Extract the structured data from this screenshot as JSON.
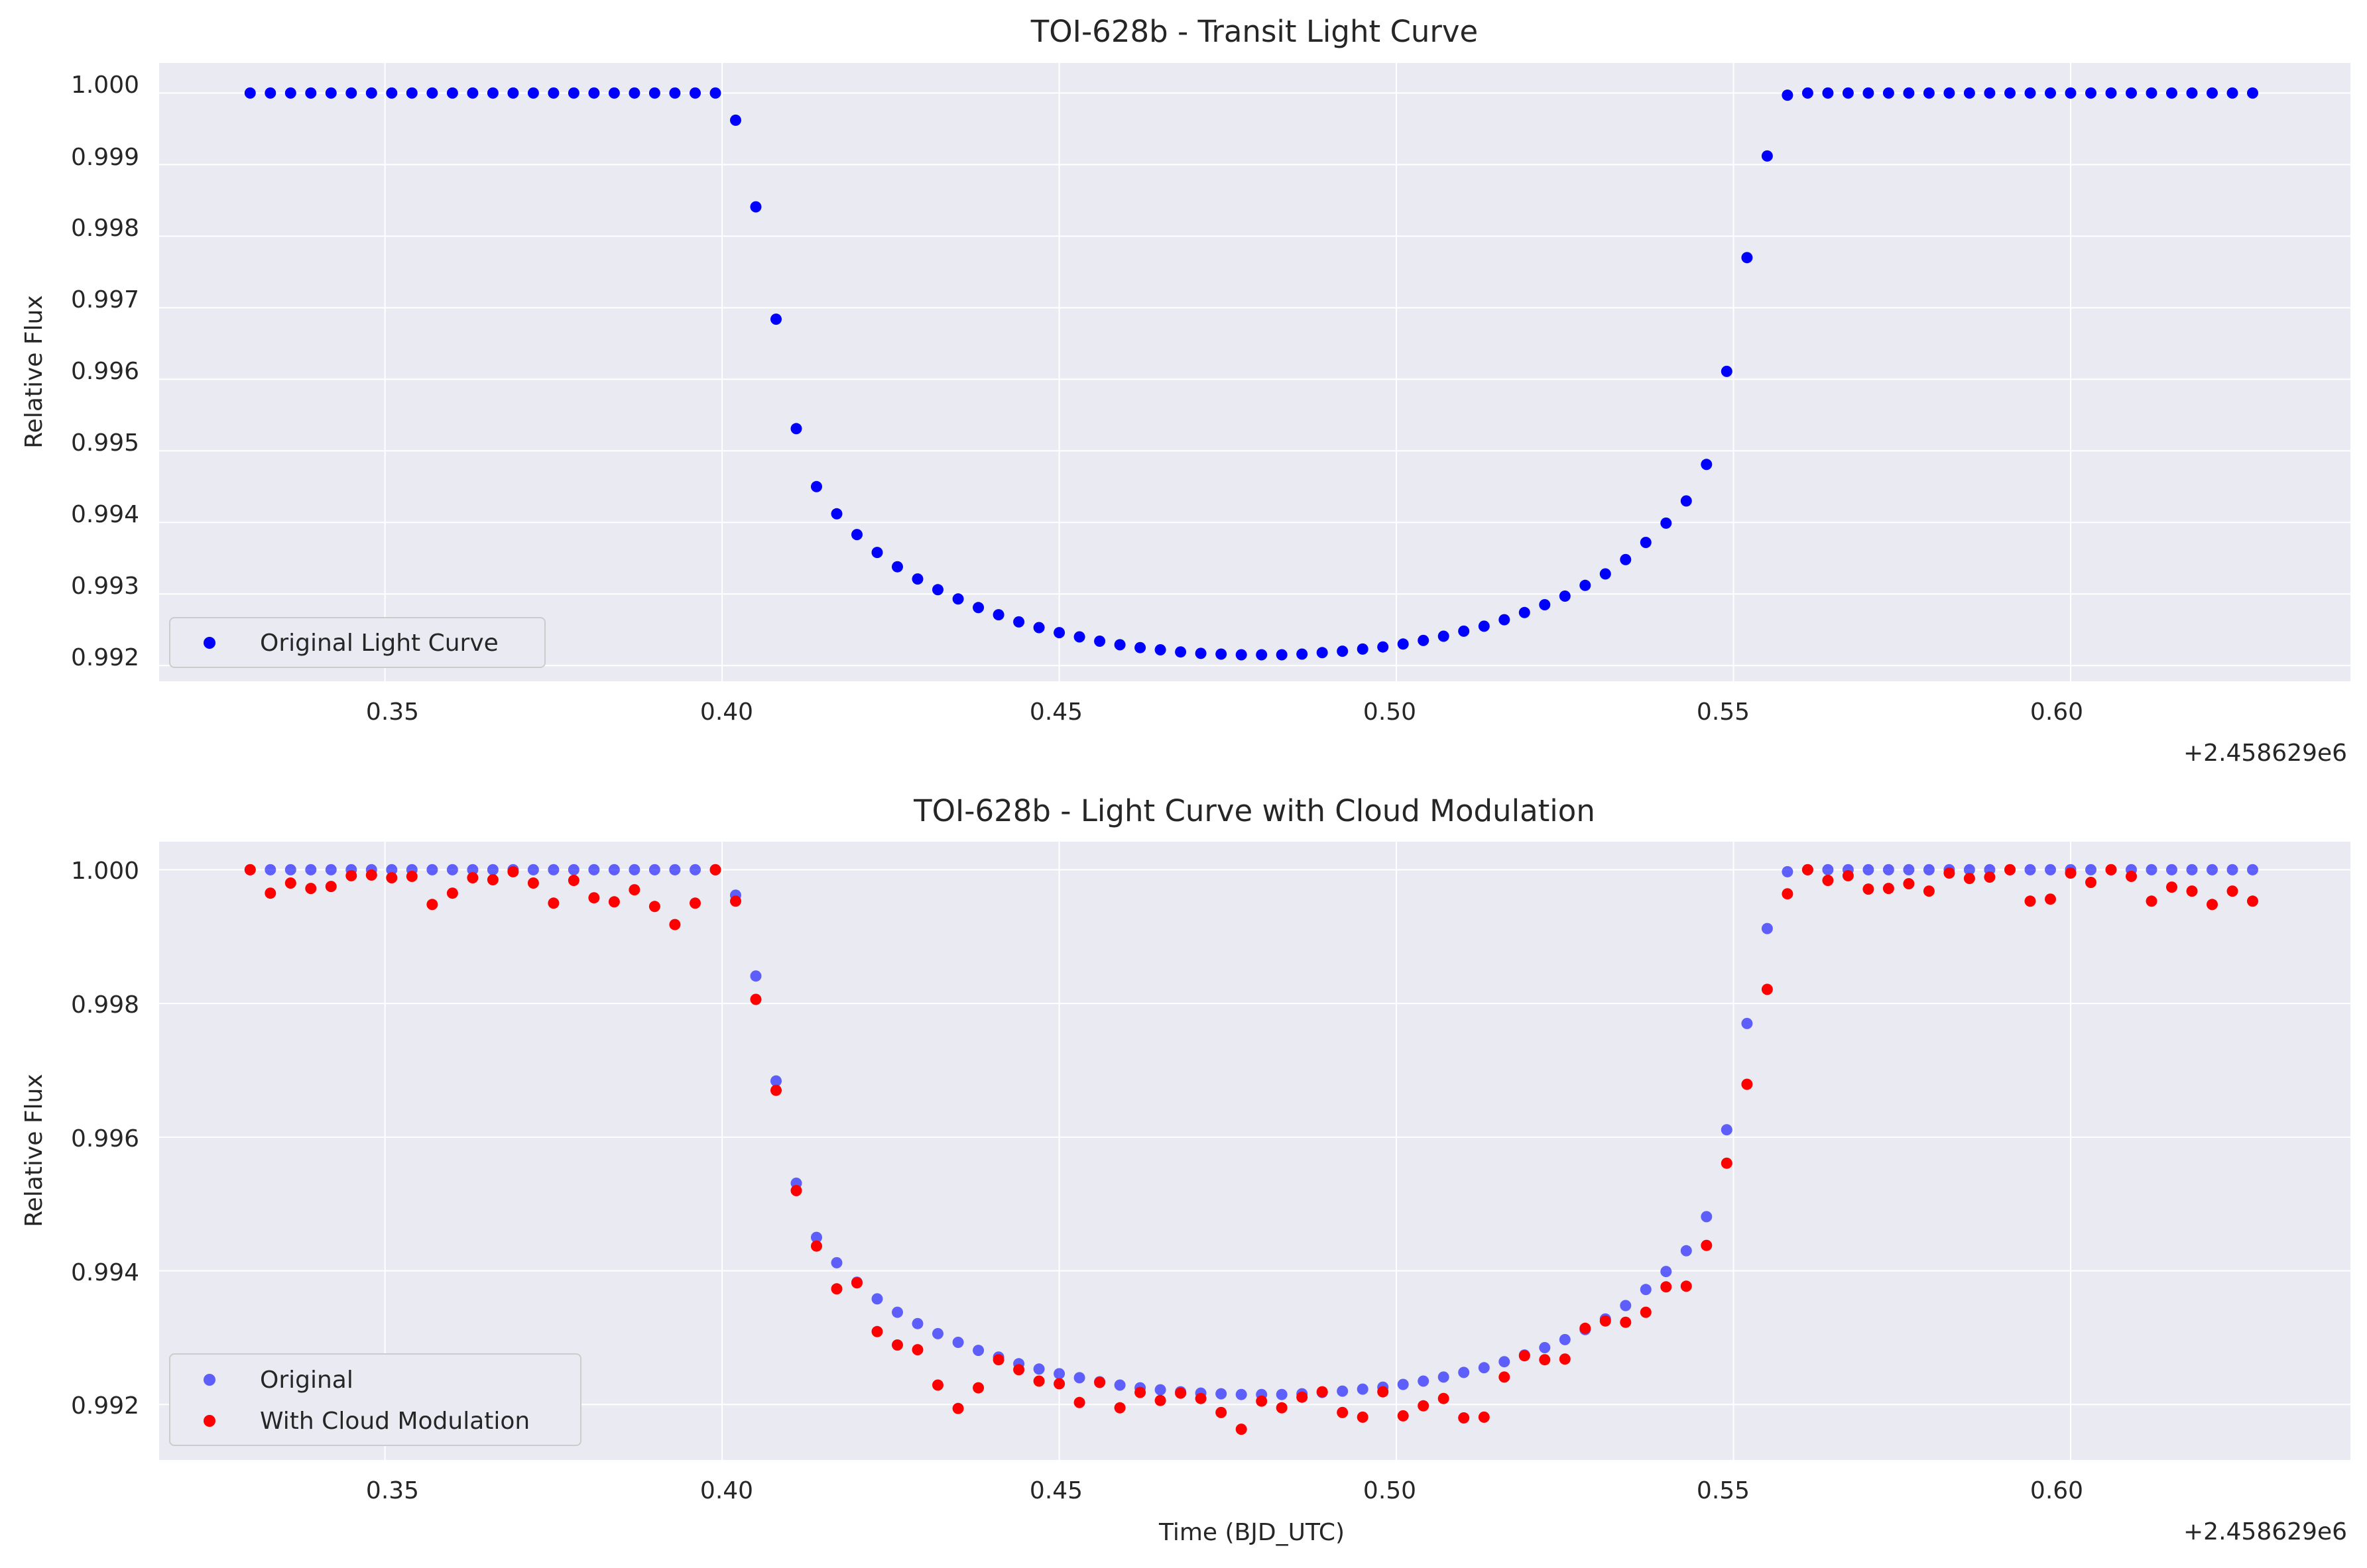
{
  "figure": {
    "panels": [
      {
        "title": "TOI-628b - Transit Light Curve",
        "xlabel": "",
        "ylabel": "Relative Flux",
        "offset_text": "+2.458629e6",
        "xticks": [
          "0.35",
          "0.40",
          "0.45",
          "0.50",
          "0.55",
          "0.60"
        ],
        "yticks": [
          "0.992",
          "0.993",
          "0.994",
          "0.995",
          "0.996",
          "0.997",
          "0.998",
          "0.999",
          "1.000"
        ],
        "legend": [
          "Original Light Curve"
        ]
      },
      {
        "title": "TOI-628b - Light Curve with Cloud Modulation",
        "xlabel": "Time (BJD_UTC)",
        "ylabel": "Relative Flux",
        "offset_text": "+2.458629e6",
        "xticks": [
          "0.35",
          "0.40",
          "0.45",
          "0.50",
          "0.55",
          "0.60"
        ],
        "yticks": [
          "0.992",
          "0.994",
          "0.996",
          "0.998",
          "1.000"
        ],
        "legend": [
          "Original",
          "With Cloud Modulation"
        ]
      }
    ]
  },
  "chart_data": [
    {
      "type": "scatter",
      "title": "TOI-628b - Transit Light Curve",
      "xlabel": "",
      "ylabel": "Relative Flux",
      "x_offset": 2458629,
      "x_offset_label": "+2.458629e6",
      "xlim": [
        0.3165,
        0.6415
      ],
      "ylim": [
        0.99178,
        1.00042
      ],
      "grid": true,
      "legend_position": "lower-left",
      "series": [
        {
          "name": "Original Light Curve",
          "color": "#0000ff",
          "x": [
            0.33,
            0.333,
            0.336,
            0.339,
            0.342,
            0.345,
            0.348,
            0.351,
            0.354,
            0.357,
            0.36,
            0.363,
            0.366,
            0.369,
            0.372,
            0.375,
            0.378,
            0.381,
            0.384,
            0.387,
            0.39,
            0.393,
            0.396,
            0.399,
            0.402,
            0.405,
            0.408,
            0.411,
            0.414,
            0.417,
            0.42,
            0.423,
            0.426,
            0.429,
            0.432,
            0.435,
            0.438,
            0.441,
            0.444,
            0.447,
            0.45,
            0.453,
            0.456,
            0.459,
            0.462,
            0.465,
            0.468,
            0.471,
            0.474,
            0.477,
            0.48,
            0.483,
            0.486,
            0.489,
            0.492,
            0.495,
            0.498,
            0.501,
            0.504,
            0.507,
            0.51,
            0.513,
            0.516,
            0.519,
            0.522,
            0.525,
            0.528,
            0.531,
            0.534,
            0.537,
            0.54,
            0.543,
            0.546,
            0.549,
            0.552,
            0.555,
            0.558,
            0.561,
            0.564,
            0.567,
            0.57,
            0.573,
            0.576,
            0.579,
            0.582,
            0.585,
            0.588,
            0.591,
            0.594,
            0.597,
            0.6,
            0.603,
            0.606,
            0.609,
            0.612,
            0.615,
            0.618,
            0.621,
            0.624,
            0.627
          ],
          "y": [
            1.0,
            1.0,
            1.0,
            1.0,
            1.0,
            1.0,
            1.0,
            1.0,
            1.0,
            1.0,
            1.0,
            1.0,
            1.0,
            1.0,
            1.0,
            1.0,
            1.0,
            1.0,
            1.0,
            1.0,
            1.0,
            1.0,
            1.0,
            1.0,
            0.99962,
            0.99841,
            0.99684,
            0.99531,
            0.9945,
            0.99412,
            0.99383,
            0.99358,
            0.99338,
            0.99321,
            0.99306,
            0.99293,
            0.99281,
            0.99271,
            0.99261,
            0.99253,
            0.99246,
            0.9924,
            0.99234,
            0.99229,
            0.99225,
            0.99222,
            0.99219,
            0.99217,
            0.99216,
            0.99215,
            0.99215,
            0.99215,
            0.99216,
            0.99218,
            0.9922,
            0.99223,
            0.99226,
            0.9923,
            0.99235,
            0.99241,
            0.99248,
            0.99255,
            0.99264,
            0.99274,
            0.99285,
            0.99297,
            0.99312,
            0.99328,
            0.99348,
            0.99372,
            0.99399,
            0.9943,
            0.99481,
            0.99611,
            0.9977,
            0.99912,
            0.99997,
            1.0,
            1.0,
            1.0,
            1.0,
            1.0,
            1.0,
            1.0,
            1.0,
            1.0,
            1.0,
            1.0,
            1.0,
            1.0,
            1.0,
            1.0,
            1.0,
            1.0,
            1.0,
            1.0,
            1.0,
            1.0,
            1.0,
            1.0
          ]
        }
      ]
    },
    {
      "type": "scatter",
      "title": "TOI-628b - Light Curve with Cloud Modulation",
      "xlabel": "Time (BJD_UTC)",
      "ylabel": "Relative Flux",
      "x_offset": 2458629,
      "x_offset_label": "+2.458629e6",
      "xlim": [
        0.3165,
        0.6415
      ],
      "ylim": [
        0.99117,
        1.00042
      ],
      "grid": true,
      "legend_position": "lower-left",
      "series": [
        {
          "name": "Original",
          "color": "#0000ff",
          "x": [
            0.33,
            0.333,
            0.336,
            0.339,
            0.342,
            0.345,
            0.348,
            0.351,
            0.354,
            0.357,
            0.36,
            0.363,
            0.366,
            0.369,
            0.372,
            0.375,
            0.378,
            0.381,
            0.384,
            0.387,
            0.39,
            0.393,
            0.396,
            0.399,
            0.402,
            0.405,
            0.408,
            0.411,
            0.414,
            0.417,
            0.42,
            0.423,
            0.426,
            0.429,
            0.432,
            0.435,
            0.438,
            0.441,
            0.444,
            0.447,
            0.45,
            0.453,
            0.456,
            0.459,
            0.462,
            0.465,
            0.468,
            0.471,
            0.474,
            0.477,
            0.48,
            0.483,
            0.486,
            0.489,
            0.492,
            0.495,
            0.498,
            0.501,
            0.504,
            0.507,
            0.51,
            0.513,
            0.516,
            0.519,
            0.522,
            0.525,
            0.528,
            0.531,
            0.534,
            0.537,
            0.54,
            0.543,
            0.546,
            0.549,
            0.552,
            0.555,
            0.558,
            0.561,
            0.564,
            0.567,
            0.57,
            0.573,
            0.576,
            0.579,
            0.582,
            0.585,
            0.588,
            0.591,
            0.594,
            0.597,
            0.6,
            0.603,
            0.606,
            0.609,
            0.612,
            0.615,
            0.618,
            0.621,
            0.624,
            0.627
          ],
          "y": [
            1.0,
            1.0,
            1.0,
            1.0,
            1.0,
            1.0,
            1.0,
            1.0,
            1.0,
            1.0,
            1.0,
            1.0,
            1.0,
            1.0,
            1.0,
            1.0,
            1.0,
            1.0,
            1.0,
            1.0,
            1.0,
            1.0,
            1.0,
            1.0,
            0.99962,
            0.99841,
            0.99684,
            0.99531,
            0.9945,
            0.99412,
            0.99383,
            0.99358,
            0.99338,
            0.99321,
            0.99306,
            0.99293,
            0.99281,
            0.99271,
            0.99261,
            0.99253,
            0.99246,
            0.9924,
            0.99234,
            0.99229,
            0.99225,
            0.99222,
            0.99219,
            0.99217,
            0.99216,
            0.99215,
            0.99215,
            0.99215,
            0.99216,
            0.99218,
            0.9922,
            0.99223,
            0.99226,
            0.9923,
            0.99235,
            0.99241,
            0.99248,
            0.99255,
            0.99264,
            0.99274,
            0.99285,
            0.99297,
            0.99312,
            0.99328,
            0.99348,
            0.99372,
            0.99399,
            0.9943,
            0.99481,
            0.99611,
            0.9977,
            0.99912,
            0.99997,
            1.0,
            1.0,
            1.0,
            1.0,
            1.0,
            1.0,
            1.0,
            1.0,
            1.0,
            1.0,
            1.0,
            1.0,
            1.0,
            1.0,
            1.0,
            1.0,
            1.0,
            1.0,
            1.0,
            1.0,
            1.0,
            1.0,
            1.0
          ]
        },
        {
          "name": "With Cloud Modulation",
          "color": "#ff0000",
          "x": [
            0.33,
            0.333,
            0.336,
            0.339,
            0.342,
            0.345,
            0.348,
            0.351,
            0.354,
            0.357,
            0.36,
            0.363,
            0.366,
            0.369,
            0.372,
            0.375,
            0.378,
            0.381,
            0.384,
            0.387,
            0.39,
            0.393,
            0.396,
            0.399,
            0.402,
            0.405,
            0.408,
            0.411,
            0.414,
            0.417,
            0.42,
            0.423,
            0.426,
            0.429,
            0.432,
            0.435,
            0.438,
            0.441,
            0.444,
            0.447,
            0.45,
            0.453,
            0.456,
            0.459,
            0.462,
            0.465,
            0.468,
            0.471,
            0.474,
            0.477,
            0.48,
            0.483,
            0.486,
            0.489,
            0.492,
            0.495,
            0.498,
            0.501,
            0.504,
            0.507,
            0.51,
            0.513,
            0.516,
            0.519,
            0.522,
            0.525,
            0.528,
            0.531,
            0.534,
            0.537,
            0.54,
            0.543,
            0.546,
            0.549,
            0.552,
            0.555,
            0.558,
            0.561,
            0.564,
            0.567,
            0.57,
            0.573,
            0.576,
            0.579,
            0.582,
            0.585,
            0.588,
            0.591,
            0.594,
            0.597,
            0.6,
            0.603,
            0.606,
            0.609,
            0.612,
            0.615,
            0.618,
            0.621,
            0.624,
            0.627
          ],
          "y": [
            1.0,
            0.99965,
            0.9998,
            0.99972,
            0.99975,
            0.99991,
            0.99992,
            0.99988,
            0.9999,
            0.99948,
            0.99965,
            0.99988,
            0.99985,
            0.99997,
            0.9998,
            0.9995,
            0.99984,
            0.99958,
            0.99952,
            0.9997,
            0.99945,
            0.99918,
            0.9995,
            1.0,
            0.99953,
            0.99806,
            0.9967,
            0.9952,
            0.99437,
            0.99373,
            0.99382,
            0.99309,
            0.99289,
            0.99282,
            0.99229,
            0.99194,
            0.99225,
            0.99267,
            0.99252,
            0.99235,
            0.99231,
            0.99203,
            0.99233,
            0.99195,
            0.99218,
            0.99206,
            0.99217,
            0.99209,
            0.99188,
            0.99163,
            0.99205,
            0.99195,
            0.99211,
            0.99219,
            0.99188,
            0.99181,
            0.99219,
            0.99183,
            0.99198,
            0.99209,
            0.9918,
            0.99181,
            0.99241,
            0.99273,
            0.99267,
            0.99268,
            0.99314,
            0.99325,
            0.99323,
            0.99338,
            0.99376,
            0.99377,
            0.99438,
            0.99561,
            0.99679,
            0.99821,
            0.99964,
            1.0,
            0.99984,
            0.99991,
            0.99971,
            0.99972,
            0.99979,
            0.99968,
            0.99995,
            0.99987,
            0.99989,
            1.0,
            0.99953,
            0.99956,
            0.99995,
            0.99981,
            1.0,
            0.9999,
            0.99953,
            0.99974,
            0.99968,
            0.99948,
            0.99968,
            0.99953
          ]
        }
      ]
    }
  ]
}
